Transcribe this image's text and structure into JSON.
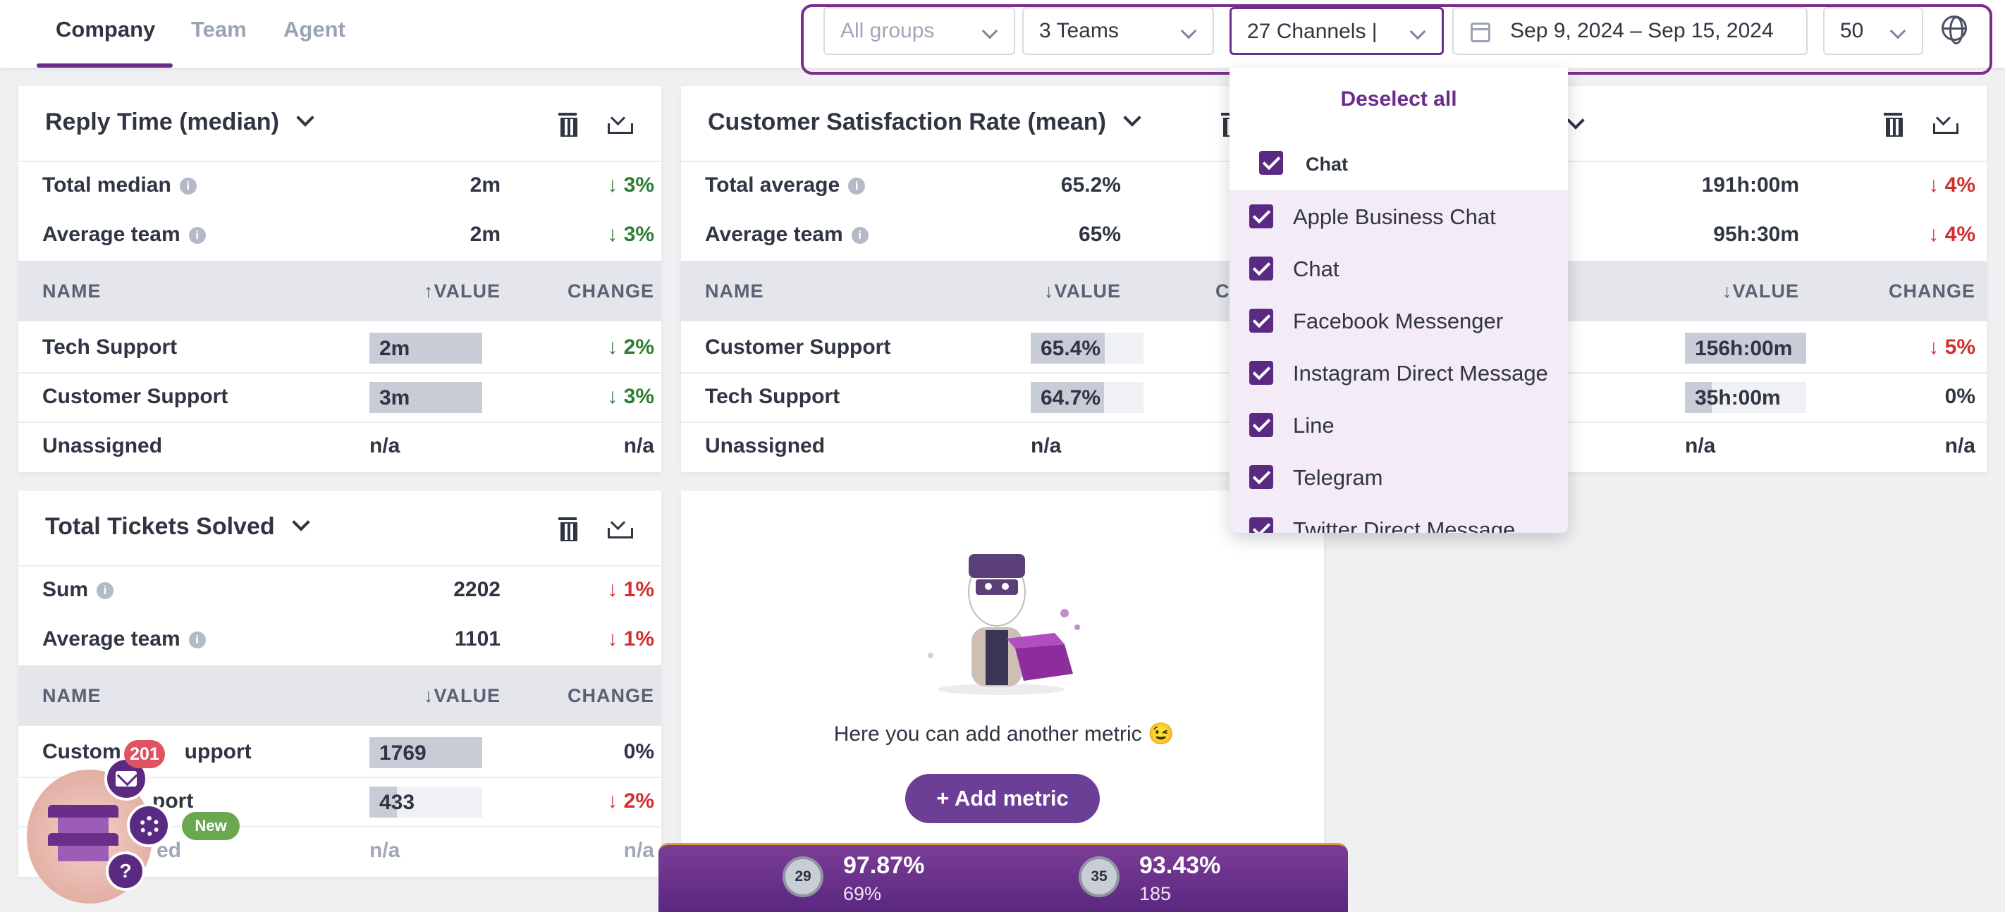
{
  "nav": {
    "tabs": [
      {
        "label": "Company",
        "active": true
      },
      {
        "label": "Team",
        "active": false
      },
      {
        "label": "Agent",
        "active": false
      }
    ]
  },
  "filters": {
    "groups_placeholder": "All groups",
    "teams_value": "3 Teams",
    "channels_value": "27 Channels",
    "date_range": "Sep 9, 2024 – Sep 15, 2024",
    "page_size": "50"
  },
  "channel_dropdown": {
    "deselect_label": "Deselect all",
    "group_label": "Chat",
    "options": [
      "Apple Business Chat",
      "Chat",
      "Facebook Messenger",
      "Instagram Direct Message",
      "Line",
      "Telegram",
      "Twitter Direct Message"
    ]
  },
  "cards": {
    "reply_time": {
      "title": "Reply Time (median)",
      "stats": [
        {
          "label": "Total median",
          "value": "2m",
          "change": "↓ 3%"
        },
        {
          "label": "Average team",
          "value": "2m",
          "change": "↓ 3%"
        }
      ],
      "columns": {
        "name": "NAME",
        "value": "↑VALUE",
        "change": "CHANGE"
      },
      "rows": [
        {
          "name": "Tech Support",
          "value": "2m",
          "fill": 1.0,
          "change": "↓ 2%"
        },
        {
          "name": "Customer Support",
          "value": "3m",
          "fill": 1.0,
          "change": "↓ 3%"
        },
        {
          "name": "Unassigned",
          "value": "n/a",
          "change": "n/a"
        }
      ]
    },
    "csat": {
      "title": "Customer Satisfaction Rate (mean)",
      "stats": [
        {
          "label": "Total average",
          "value": "65.2%"
        },
        {
          "label": "Average team",
          "value": "65%"
        }
      ],
      "columns": {
        "name": "NAME",
        "value": "↓VALUE",
        "change": "C"
      },
      "rows": [
        {
          "name": "Customer Support",
          "value": "65.4%",
          "fill": 0.654
        },
        {
          "name": "Tech Support",
          "value": "64.7%",
          "fill": 0.647
        },
        {
          "name": "Unassigned",
          "value": "n/a"
        }
      ]
    },
    "third": {
      "stats": [
        {
          "value": "191h:00m",
          "change": "↓ 4%"
        },
        {
          "value": "95h:30m",
          "change": "↓ 4%"
        }
      ],
      "columns": {
        "value": "↓VALUE",
        "change": "CHANGE"
      },
      "rows": [
        {
          "value": "156h:00m",
          "fill": 1.0,
          "change": "↓ 5%"
        },
        {
          "value": "35h:00m",
          "fill": 0.22,
          "change": "0%"
        },
        {
          "value": "n/a",
          "change": "n/a"
        }
      ]
    },
    "tickets_solved": {
      "title": "Total Tickets Solved",
      "stats": [
        {
          "label": "Sum",
          "value": "2202",
          "change": "↓ 1%"
        },
        {
          "label": "Average team",
          "value": "1101",
          "change": "↓ 1%"
        }
      ],
      "columns": {
        "name": "NAME",
        "value": "↓VALUE",
        "change": "CHANGE"
      },
      "rows": [
        {
          "name": "Custom",
          "name_tail": "upport",
          "value": "1769",
          "fill": 1.0,
          "change": "0%"
        },
        {
          "name": "",
          "name_tail": "port",
          "value": "433",
          "fill": 0.245,
          "change": "↓ 2%"
        },
        {
          "name": "",
          "name_tail": "ed",
          "value": "n/a",
          "change": "n/a"
        }
      ]
    },
    "empty": {
      "message": "Here you can add another metric 😉",
      "button_label": "+ Add metric"
    }
  },
  "banner": {
    "left": {
      "rank": "29",
      "pct": "97.87%",
      "sub": "69%"
    },
    "right": {
      "rank": "35",
      "pct": "93.43%",
      "sub": "185"
    }
  },
  "widget": {
    "count": "201",
    "new_label": "New",
    "help": "?"
  }
}
